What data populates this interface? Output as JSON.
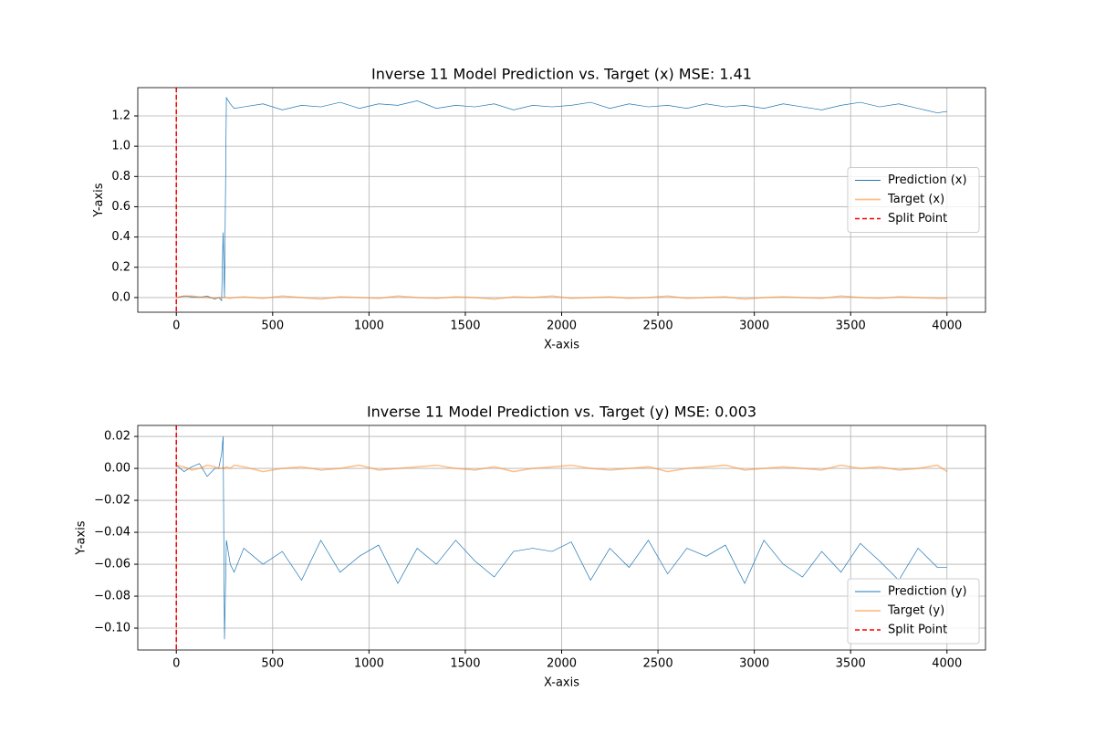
{
  "chart_data": [
    {
      "type": "line",
      "title": "Inverse 11 Model Prediction vs. Target (x) MSE: 1.41",
      "xlabel": "X-axis",
      "ylabel": "Y-axis",
      "x": [
        0,
        40,
        80,
        120,
        160,
        200,
        220,
        235,
        243,
        250,
        260,
        280,
        300,
        350,
        450,
        550,
        650,
        750,
        850,
        950,
        1050,
        1150,
        1250,
        1350,
        1450,
        1550,
        1650,
        1750,
        1850,
        1950,
        2050,
        2150,
        2250,
        2350,
        2450,
        2550,
        2650,
        2750,
        2850,
        2950,
        3050,
        3150,
        3250,
        3350,
        3450,
        3550,
        3650,
        3750,
        3850,
        3950,
        4000
      ],
      "series": [
        {
          "name": "Prediction (x)",
          "color": "#1f77b4",
          "values": [
            0.0,
            0.01,
            0.005,
            0.0,
            0.01,
            -0.01,
            0.0,
            -0.02,
            0.43,
            0.0,
            1.32,
            1.28,
            1.25,
            1.26,
            1.28,
            1.24,
            1.27,
            1.26,
            1.29,
            1.25,
            1.28,
            1.27,
            1.3,
            1.25,
            1.27,
            1.26,
            1.28,
            1.24,
            1.27,
            1.26,
            1.27,
            1.29,
            1.25,
            1.28,
            1.26,
            1.27,
            1.25,
            1.28,
            1.26,
            1.27,
            1.25,
            1.28,
            1.26,
            1.24,
            1.27,
            1.29,
            1.26,
            1.28,
            1.25,
            1.22,
            1.23
          ]
        },
        {
          "name": "Target (x)",
          "color": "#ff7f0e",
          "values": [
            0.0,
            0.01,
            0.01,
            0.005,
            0.0,
            -0.005,
            0.0,
            0.0,
            0.0,
            0.0,
            0.0,
            -0.005,
            0.0,
            0.005,
            -0.005,
            0.01,
            0.0,
            -0.01,
            0.005,
            0.0,
            -0.005,
            0.01,
            0.0,
            -0.005,
            0.005,
            0.0,
            -0.01,
            0.005,
            0.0,
            0.01,
            -0.005,
            0.0,
            0.005,
            -0.005,
            0.0,
            0.01,
            -0.005,
            0.0,
            0.005,
            -0.01,
            0.0,
            0.005,
            0.0,
            -0.005,
            0.01,
            0.0,
            -0.005,
            0.005,
            0.0,
            -0.005,
            -0.005
          ]
        }
      ],
      "vlines": [
        {
          "name": "Split Point",
          "color": "#ff0000",
          "x": 0
        }
      ],
      "xlim": [
        -200,
        4200
      ],
      "ylim": [
        -0.097,
        1.387
      ],
      "xticks": [
        0,
        500,
        1000,
        1500,
        2000,
        2500,
        3000,
        3500,
        4000
      ],
      "yticks": [
        {
          "value": 0,
          "label": "0.0"
        },
        {
          "value": 0.2,
          "label": "0.2"
        },
        {
          "value": 0.4,
          "label": "0.4"
        },
        {
          "value": 0.6,
          "label": "0.6"
        },
        {
          "value": 0.8,
          "label": "0.8"
        },
        {
          "value": 1.0,
          "label": "1.0"
        },
        {
          "value": 1.2,
          "label": "1.2"
        }
      ],
      "grid": true,
      "legend": "right"
    },
    {
      "type": "line",
      "title": "Inverse 11 Model Prediction vs. Target (y) MSE: 0.003",
      "xlabel": "X-axis",
      "ylabel": "Y-axis",
      "x": [
        0,
        40,
        80,
        120,
        160,
        200,
        220,
        235,
        243,
        250,
        260,
        280,
        300,
        350,
        450,
        550,
        650,
        750,
        850,
        950,
        1050,
        1150,
        1250,
        1350,
        1450,
        1550,
        1650,
        1750,
        1850,
        1950,
        2050,
        2150,
        2250,
        2350,
        2450,
        2550,
        2650,
        2750,
        2850,
        2950,
        3050,
        3150,
        3250,
        3350,
        3450,
        3550,
        3650,
        3750,
        3850,
        3950,
        4000
      ],
      "series": [
        {
          "name": "Prediction (y)",
          "color": "#1f77b4",
          "values": [
            0.002,
            -0.002,
            0.001,
            0.003,
            -0.005,
            0.0,
            0.0,
            0.009,
            0.02,
            -0.107,
            -0.045,
            -0.06,
            -0.065,
            -0.05,
            -0.06,
            -0.052,
            -0.07,
            -0.045,
            -0.065,
            -0.055,
            -0.048,
            -0.072,
            -0.05,
            -0.06,
            -0.045,
            -0.058,
            -0.068,
            -0.052,
            -0.05,
            -0.052,
            -0.046,
            -0.07,
            -0.05,
            -0.062,
            -0.045,
            -0.066,
            -0.05,
            -0.055,
            -0.048,
            -0.072,
            -0.045,
            -0.06,
            -0.068,
            -0.052,
            -0.065,
            -0.047,
            -0.058,
            -0.07,
            -0.05,
            -0.062,
            -0.062
          ]
        },
        {
          "name": "Target (y)",
          "color": "#ff7f0e",
          "values": [
            0.002,
            0.001,
            -0.001,
            0.0,
            0.002,
            0.001,
            0.0,
            0.0,
            0.001,
            0.0,
            0.001,
            0.0,
            0.002,
            0.001,
            -0.002,
            0.0,
            0.001,
            -0.001,
            0.0,
            0.002,
            -0.001,
            0.0,
            0.001,
            0.002,
            0.0,
            -0.001,
            0.001,
            -0.002,
            0.0,
            0.001,
            0.002,
            0.0,
            -0.001,
            0.0,
            0.001,
            -0.002,
            0.0,
            0.001,
            0.002,
            -0.001,
            0.0,
            0.001,
            0.0,
            -0.001,
            0.002,
            0.0,
            0.001,
            -0.001,
            0.0,
            0.002,
            -0.002
          ]
        }
      ],
      "vlines": [
        {
          "name": "Split Point",
          "color": "#ff0000",
          "x": 0
        }
      ],
      "xlim": [
        -200,
        4200
      ],
      "ylim": [
        -0.1137,
        0.0269
      ],
      "xticks": [
        0,
        500,
        1000,
        1500,
        2000,
        2500,
        3000,
        3500,
        4000
      ],
      "yticks": [
        {
          "value": 0.02,
          "label": "0.02"
        },
        {
          "value": 0,
          "label": "0.00"
        },
        {
          "value": -0.02,
          "label": "−0.02"
        },
        {
          "value": -0.04,
          "label": "−0.04"
        },
        {
          "value": -0.06,
          "label": "−0.06"
        },
        {
          "value": -0.08,
          "label": "−0.08"
        },
        {
          "value": -0.1,
          "label": "−0.10"
        }
      ],
      "grid": true,
      "legend": "lower right"
    }
  ]
}
